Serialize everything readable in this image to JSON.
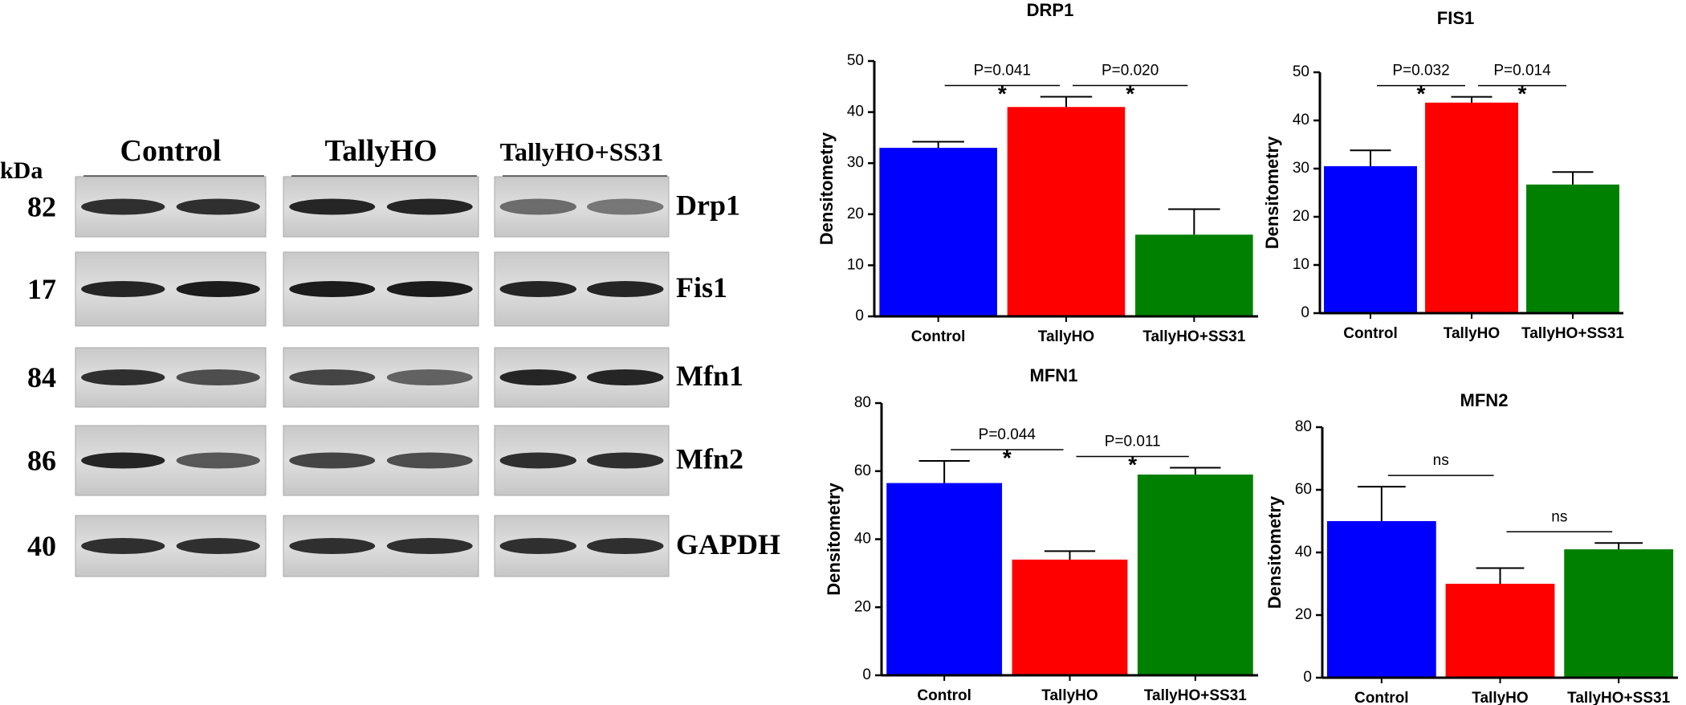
{
  "blot": {
    "unit": "kDa",
    "groups": [
      "Control",
      "TallyHO",
      "TallyHO+SS31"
    ],
    "rows": [
      {
        "kda": 82,
        "protein": "Drp1"
      },
      {
        "kda": 17,
        "protein": "Fis1"
      },
      {
        "kda": 84,
        "protein": "Mfn1"
      },
      {
        "kda": 86,
        "protein": "Mfn2"
      },
      {
        "kda": 40,
        "protein": "GAPDH"
      }
    ]
  },
  "chart_data": [
    {
      "type": "bar",
      "title": "DRP1",
      "ylabel": "Densitometry",
      "categories": [
        "Control",
        "TallyHO",
        "TallyHO+SS31"
      ],
      "values": [
        33,
        41,
        16
      ],
      "errors": [
        1.2,
        2,
        5
      ],
      "colors": [
        "#0000ff",
        "#ff0000",
        "#008000"
      ],
      "ylim": [
        0,
        50
      ],
      "yticks": [
        0,
        10,
        20,
        30,
        40,
        50
      ],
      "annotations": [
        {
          "text": "P=0.041",
          "sig": "*"
        },
        {
          "text": "P=0.020",
          "sig": "*"
        }
      ]
    },
    {
      "type": "bar",
      "title": "FIS1",
      "ylabel": "Densitometry",
      "categories": [
        "Control",
        "TallyHO",
        "TallyHO+SS31"
      ],
      "values": [
        30.5,
        43.7,
        26.7
      ],
      "errors": [
        3.3,
        1.2,
        2.6
      ],
      "colors": [
        "#0000ff",
        "#ff0000",
        "#008000"
      ],
      "ylim": [
        0,
        50
      ],
      "yticks": [
        0,
        10,
        20,
        30,
        40,
        50
      ],
      "annotations": [
        {
          "text": "P=0.032",
          "sig": "*"
        },
        {
          "text": "P=0.014",
          "sig": "*"
        }
      ]
    },
    {
      "type": "bar",
      "title": "MFN1",
      "ylabel": "Densitometry",
      "categories": [
        "Control",
        "TallyHO",
        "TallyHO+SS31"
      ],
      "values": [
        56.5,
        34,
        59
      ],
      "errors": [
        6.5,
        2.5,
        2
      ],
      "colors": [
        "#0000ff",
        "#ff0000",
        "#008000"
      ],
      "ylim": [
        0,
        80
      ],
      "yticks": [
        0,
        20,
        40,
        60,
        80
      ],
      "annotations": [
        {
          "text": "P=0.044",
          "sig": "*"
        },
        {
          "text": "P=0.011",
          "sig": "*"
        }
      ]
    },
    {
      "type": "bar",
      "title": "MFN2",
      "ylabel": "Densitometry",
      "categories": [
        "Control",
        "TallyHO",
        "TallyHO+SS31"
      ],
      "values": [
        50,
        30,
        41
      ],
      "errors": [
        11,
        5,
        2
      ],
      "colors": [
        "#0000ff",
        "#ff0000",
        "#008000"
      ],
      "ylim": [
        0,
        80
      ],
      "yticks": [
        0,
        20,
        40,
        60,
        80
      ],
      "annotations": [
        {
          "text": "ns"
        },
        {
          "text": "ns"
        }
      ]
    }
  ]
}
